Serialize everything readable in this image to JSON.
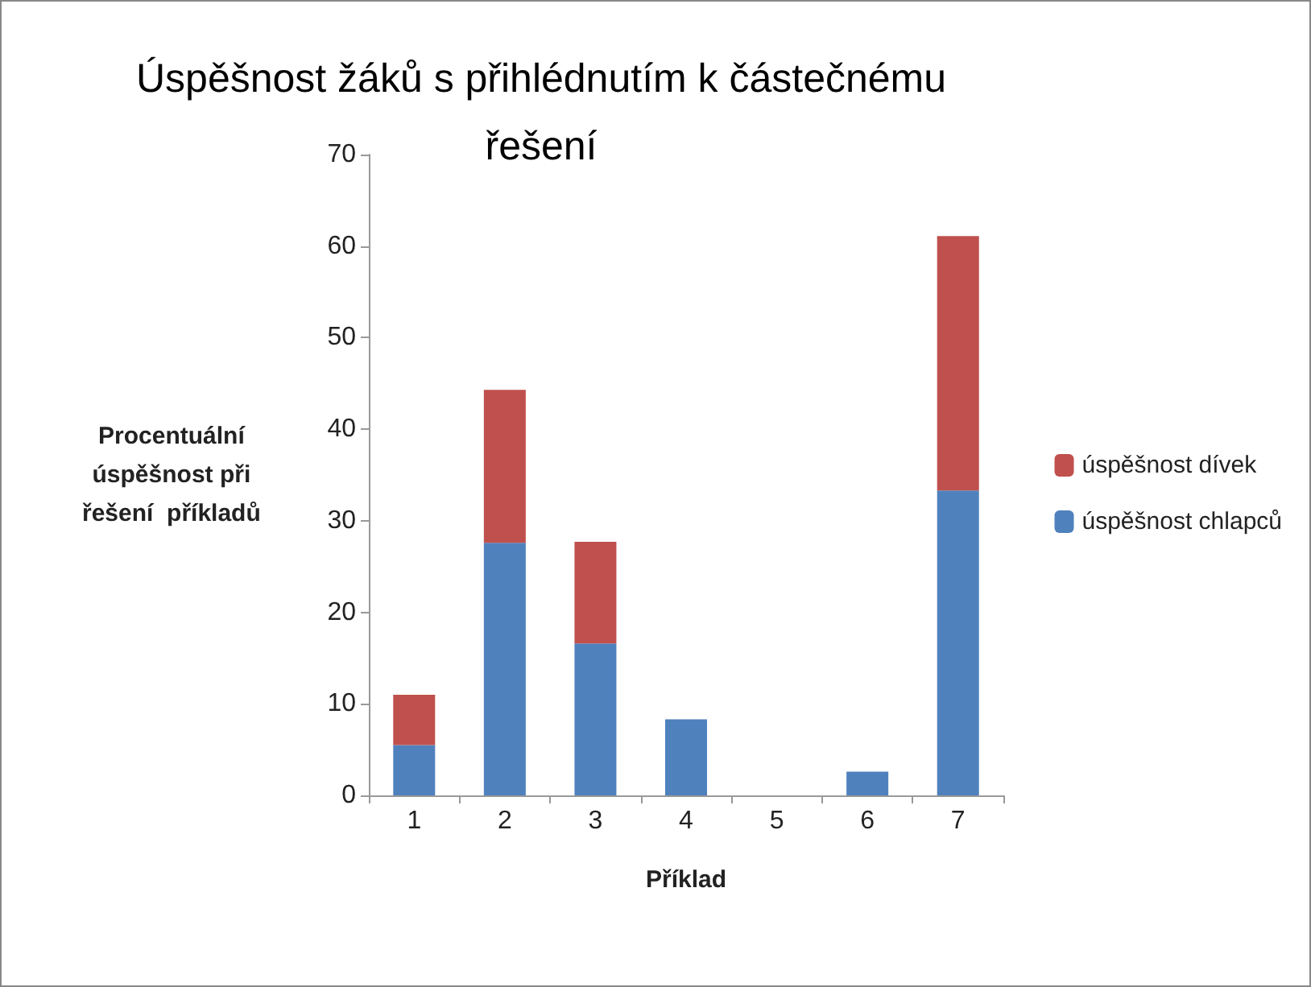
{
  "chart_data": {
    "type": "bar",
    "title": "Úspěšnost žáků s přihlédnutím k částečnému\nřešení",
    "xlabel": "Příklad",
    "ylabel": "Procentuální\núspěšnost při\nřešení  příkladů",
    "categories": [
      "1",
      "2",
      "3",
      "4",
      "5",
      "6",
      "7"
    ],
    "stacked": true,
    "series": [
      {
        "name": "úspěšnost chlapců",
        "color": "#4f81bd",
        "values": [
          5.5,
          27.6,
          16.6,
          8.3,
          0,
          2.6,
          33.3
        ]
      },
      {
        "name": "úspěšnost dívek",
        "color": "#c0504d",
        "values": [
          5.5,
          16.7,
          11.1,
          0,
          0,
          0,
          27.8
        ]
      }
    ],
    "ylim": [
      0,
      70
    ],
    "yticks": [
      0,
      10,
      20,
      30,
      40,
      50,
      60,
      70
    ],
    "grid": false,
    "legend": "right"
  }
}
